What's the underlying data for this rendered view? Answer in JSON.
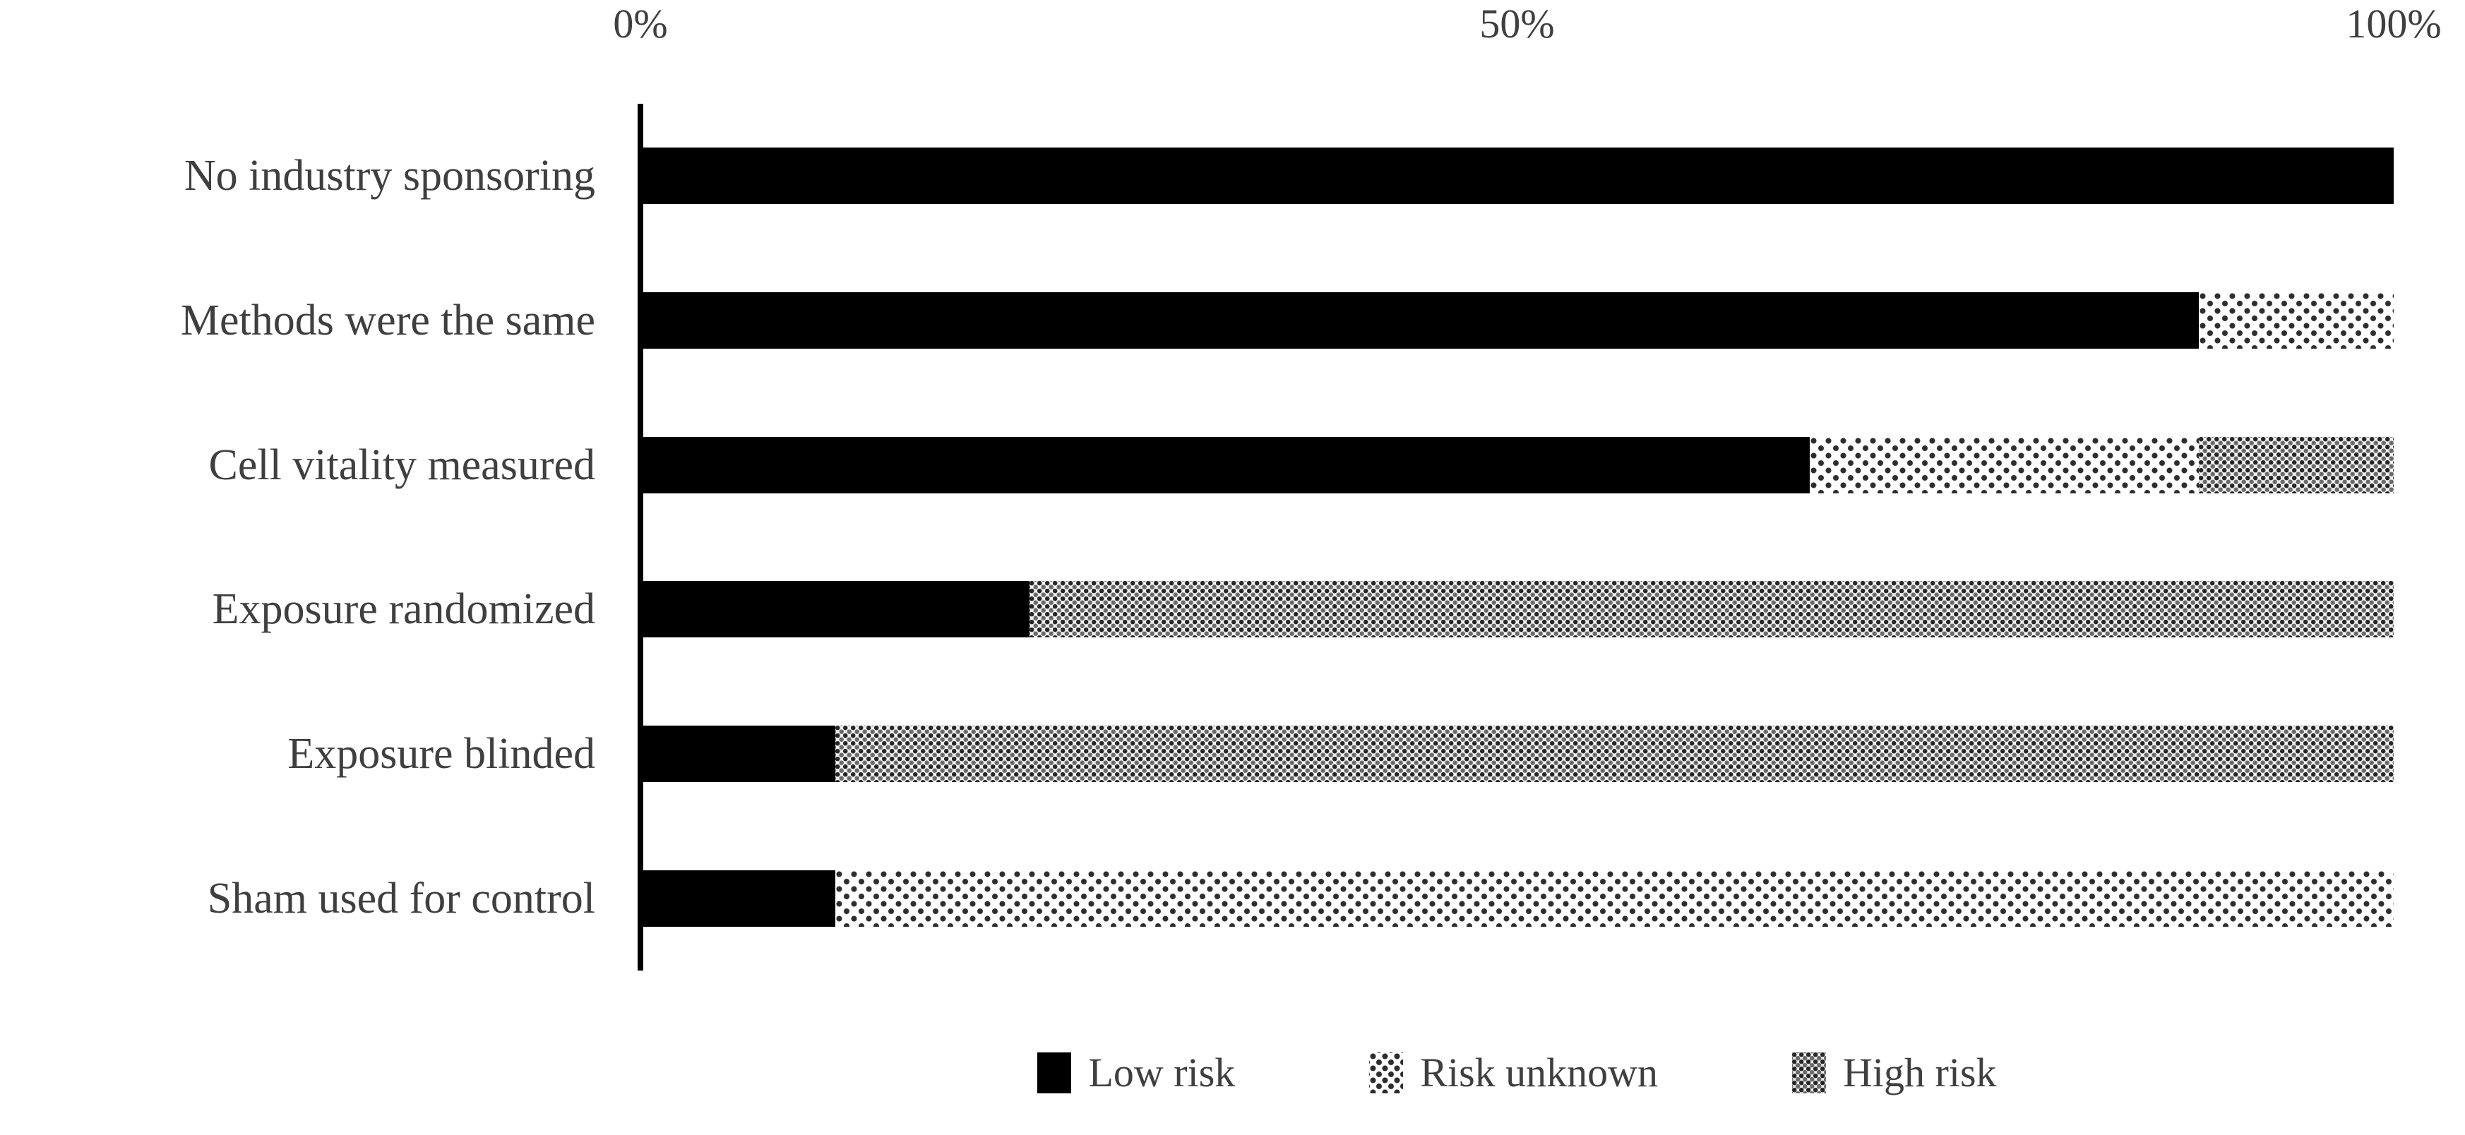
{
  "chart_data": {
    "type": "bar",
    "orientation": "horizontal-stacked",
    "title": "",
    "xlabel": "",
    "ylabel": "",
    "xlim": [
      0,
      100
    ],
    "xticks": [
      "0%",
      "50%",
      "100%"
    ],
    "xtick_values": [
      0,
      50,
      100
    ],
    "grid": "off",
    "legend_position": "bottom",
    "categories": [
      "No industry sponsoring",
      "Methods were the same",
      "Cell vitality measured",
      "Exposure randomized",
      "Exposure blinded",
      "Sham used for control"
    ],
    "series": [
      {
        "name": "Low risk",
        "pattern": "solid-black",
        "values": [
          100,
          88.9,
          66.7,
          22.2,
          11.1,
          11.1
        ]
      },
      {
        "name": "Risk unknown",
        "pattern": "light-dots",
        "values": [
          0,
          11.1,
          22.2,
          0,
          0,
          88.9
        ]
      },
      {
        "name": "High risk",
        "pattern": "dense-dots",
        "values": [
          0,
          0,
          11.1,
          77.8,
          88.9,
          0
        ]
      }
    ],
    "colors": {
      "low_risk": "#000000",
      "pattern_dot": "#2d2d2d",
      "high_risk_bg": "#f3f3f3",
      "text": "#3f3f3f",
      "axis": "#000000",
      "background": "#ffffff"
    }
  }
}
